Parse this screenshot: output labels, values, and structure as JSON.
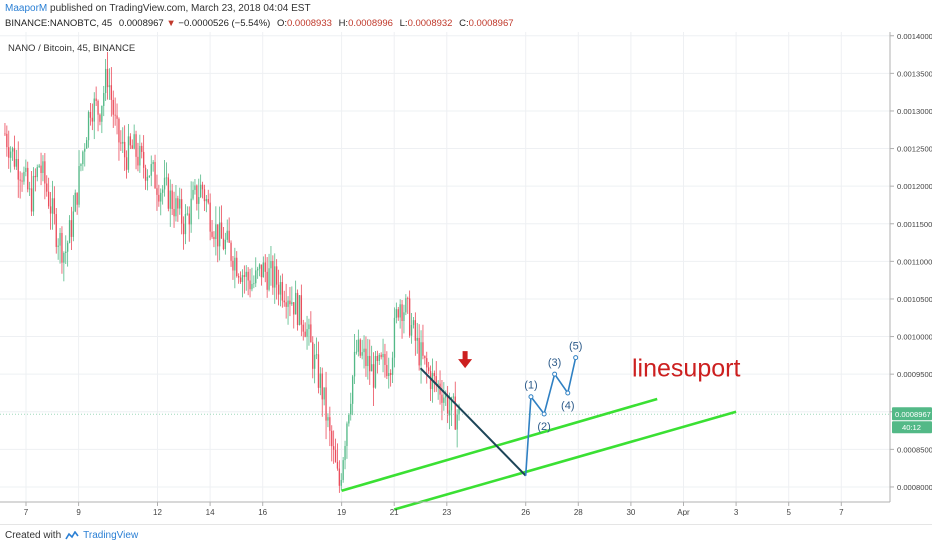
{
  "header": {
    "author": "MaaporM",
    "published_text": "published on TradingView.com, March 23, 2018 04:04 EST",
    "symbol": "BINANCE:NANOBTC, 45",
    "last": "0.0008967",
    "change": "−0.0000526 (−5.54%)",
    "o_label": "O:",
    "o_val": "0.0008933",
    "h_label": "H:",
    "h_val": "0.0008996",
    "l_label": "L:",
    "l_val": "0.0008932",
    "c_label": "C:",
    "c_val": "0.0008967"
  },
  "footer": {
    "created_with": "Created with",
    "brand": "TradingView"
  },
  "chart_data": {
    "type": "candlestick",
    "title": "NANO / Bitcoin, 45, BINANCE",
    "x_tick_labels": [
      "7",
      "9",
      "12",
      "14",
      "16",
      "19",
      "21",
      "23",
      "26",
      "28",
      "30",
      "Apr",
      "3",
      "5",
      "7"
    ],
    "y_tick_labels": [
      "0.0008000",
      "0.0008500",
      "0.0009000",
      "0.0009500",
      "0.0010000",
      "0.0010500",
      "0.0011000",
      "0.0011500",
      "0.0012000",
      "0.0012500",
      "0.0013000",
      "0.0013500",
      "0.0014000"
    ],
    "ylim": [
      0.00078,
      0.001405
    ],
    "grid": true,
    "current_price_label": "0.0008967",
    "countdown_label": "40:12",
    "colors": {
      "up": "#53b987",
      "down": "#eb4d5c",
      "support": "#3ae033",
      "trend": "#1d4558",
      "wave": "#2f80c3",
      "annotation": "#cc1f1f",
      "price_tag": "#53b987"
    },
    "annotations": {
      "text": "linesuport",
      "wave_labels": [
        "(1)",
        "(2)",
        "(3)",
        "(4)",
        "(5)"
      ],
      "arrow": "red-down-arrow",
      "support_lines": [
        {
          "start": [
            "Mar 19",
            0.000795
          ],
          "end": [
            "Mar 31",
            0.000917
          ]
        },
        {
          "start": [
            "Mar 21",
            0.00077
          ],
          "end": [
            "Apr 3",
            0.0009
          ]
        }
      ],
      "trend_line": {
        "start": [
          "Mar 22",
          0.000958
        ],
        "end": [
          "Mar 26",
          0.000815
        ]
      },
      "wave_path": [
        [
          "Mar 26",
          0.000815
        ],
        [
          "Mar 26.2",
          0.00092
        ],
        [
          "Mar 26.7",
          0.000897
        ],
        [
          "Mar 27.1",
          0.00095
        ],
        [
          "Mar 27.6",
          0.000925
        ],
        [
          "Mar 27.9",
          0.000972
        ]
      ]
    },
    "ohlc_candles_approx": {
      "note": "Approximate 45-min candles; close path sampled to match the figure.",
      "start_date": "Mar 6",
      "closes_path_samples": [
        0.00127,
        0.00124,
        0.00122,
        0.00118,
        0.00123,
        0.00119,
        0.00114,
        0.00111,
        0.00116,
        0.00124,
        0.00131,
        0.0013,
        0.00135,
        0.00127,
        0.00124,
        0.00125,
        0.00123,
        0.00122,
        0.0012,
        0.00119,
        0.00117,
        0.00115,
        0.00118,
        0.0012,
        0.00116,
        0.00113,
        0.00112,
        0.0011,
        0.00108,
        0.00107,
        0.00109,
        0.00108,
        0.00107,
        0.00106,
        0.00104,
        0.00102,
        0.00097,
        0.00093,
        0.00086,
        0.0008,
        0.0009,
        0.00098,
        0.00097,
        0.00095,
        0.00096,
        0.00097,
        0.00105,
        0.00103,
        0.00099,
        0.00096,
        0.00094,
        0.00093,
        0.0009,
        0.0008967
      ]
    }
  }
}
